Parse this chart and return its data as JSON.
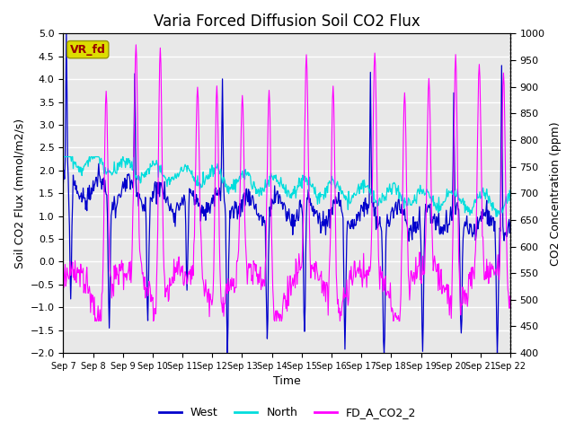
{
  "title": "Varia Forced Diffusion Soil CO2 Flux",
  "xlabel": "Time",
  "ylabel_left": "Soil CO2 Flux (mmol/m2/s)",
  "ylabel_right": "CO2 Concentration (ppm)",
  "ylim_left": [
    -2.0,
    5.0
  ],
  "ylim_right": [
    400,
    1000
  ],
  "xtick_labels": [
    "Sep 7",
    "Sep 8",
    "Sep 9",
    "Sep 10",
    "Sep 11",
    "Sep 12",
    "Sep 13",
    "Sep 14",
    "Sep 15",
    "Sep 16",
    "Sep 17",
    "Sep 18",
    "Sep 19",
    "Sep 20",
    "Sep 21",
    "Sep 22"
  ],
  "west_color": "#0000CC",
  "north_color": "#00DDDD",
  "co2_color": "#FF00FF",
  "legend_labels": [
    "West",
    "North",
    "FD_A_CO2_2"
  ],
  "vr_fd_box_color": "#DDDD00",
  "vr_fd_text_color": "#990000",
  "bg_color": "#E8E8E8",
  "grid_color": "#FFFFFF",
  "title_fontsize": 12,
  "axis_fontsize": 9,
  "tick_fontsize": 8,
  "legend_fontsize": 9
}
